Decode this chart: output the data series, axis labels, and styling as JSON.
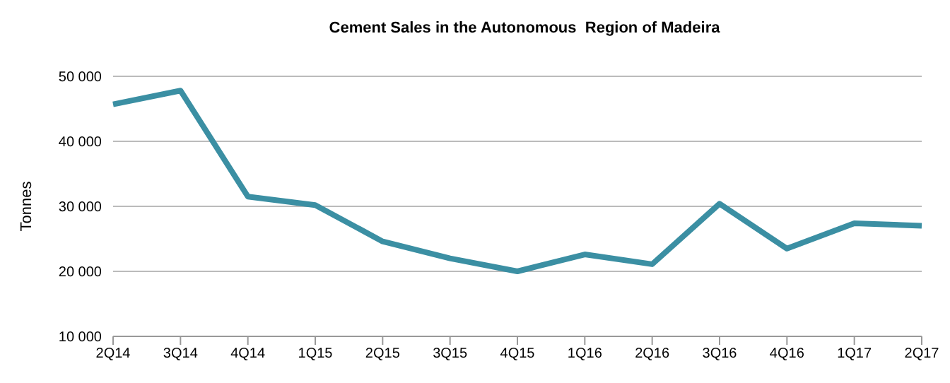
{
  "chart_data": {
    "type": "line",
    "title": "Cement Sales in the Autonomous  Region of Madeira",
    "ylabel": "Tonnes",
    "categories": [
      "2Q14",
      "3Q14",
      "4Q14",
      "1Q15",
      "2Q15",
      "3Q15",
      "4Q15",
      "1Q16",
      "2Q16",
      "3Q16",
      "4Q16",
      "1Q17",
      "2Q17"
    ],
    "series": [
      {
        "color": "#3b8fa3",
        "values": [
          45700,
          47800,
          31500,
          30200,
          24600,
          22000,
          20000,
          22600,
          21100,
          30400,
          23500,
          27400,
          27000
        ]
      }
    ],
    "ylim": [
      10000,
      50000
    ],
    "yticks": [
      {
        "value": 10000,
        "label": "10 000"
      },
      {
        "value": 20000,
        "label": "20 000"
      },
      {
        "value": 30000,
        "label": "30 000"
      },
      {
        "value": 40000,
        "label": "40 000"
      },
      {
        "value": 50000,
        "label": "50 000"
      }
    ],
    "grid": "y",
    "marker": "none",
    "line_style": "solid",
    "legend": false
  }
}
